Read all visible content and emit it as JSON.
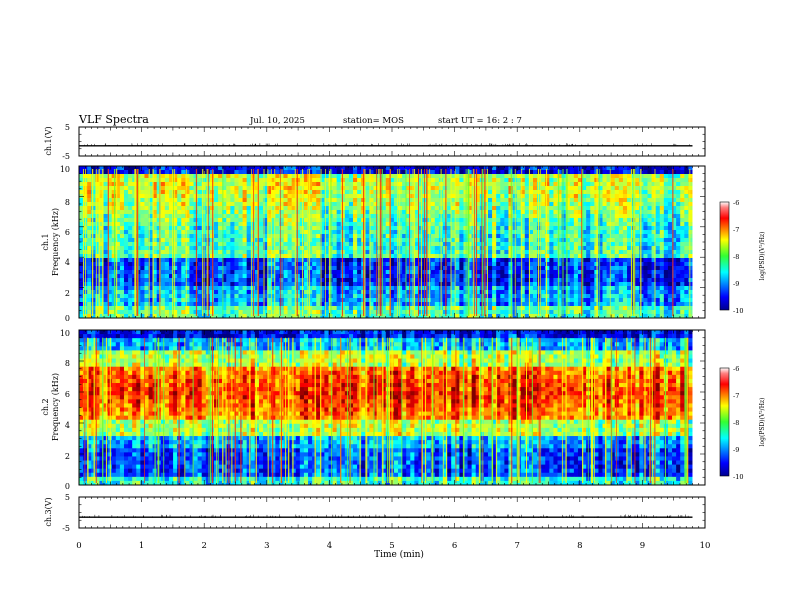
{
  "header": {
    "title": "VLF Spectra",
    "date": "Jul. 10, 2025",
    "station": "station= MOS",
    "start_ut": "start UT =   16: 2  : 7"
  },
  "chart_data": [
    {
      "name": "ch1-voltage",
      "type": "line",
      "ylabel": "ch.1(V)",
      "ylim": [
        -5,
        5
      ],
      "y_ticks": [
        "5",
        "-5"
      ],
      "xlim": [
        0,
        10
      ],
      "baseline": -1.5
    },
    {
      "name": "ch1-spectrogram",
      "type": "heatmap",
      "ylabel": "ch.1\nFrequency (kHz)",
      "ylim": [
        0,
        10
      ],
      "y_ticks": [
        "0",
        "2",
        "4",
        "6",
        "8",
        "10"
      ],
      "xlim": [
        0,
        10
      ],
      "data_end_min": 9.8,
      "colorbar": {
        "label": "log(PSD)(V²/Hz)",
        "range": [
          -10,
          -6
        ],
        "ticks": [
          "-6",
          "-7",
          "-8",
          "-9",
          "-10"
        ]
      }
    },
    {
      "name": "ch2-spectrogram",
      "type": "heatmap",
      "ylabel": "ch.2\nFrequency (kHz)",
      "ylim": [
        0,
        10
      ],
      "y_ticks": [
        "0",
        "2",
        "4",
        "6",
        "8",
        "10"
      ],
      "xlim": [
        0,
        10
      ],
      "data_end_min": 9.8,
      "colorbar": {
        "label": "log(PSD)(V²/Hz)",
        "range": [
          -10,
          -6
        ],
        "ticks": [
          "-6",
          "-7",
          "-8",
          "-9",
          "-10"
        ]
      }
    },
    {
      "name": "ch3-voltage",
      "type": "line",
      "ylabel": "ch.3(V)",
      "ylim": [
        -5,
        5
      ],
      "y_ticks": [
        "5",
        "-5"
      ],
      "xlim": [
        0,
        10
      ],
      "baseline": -1.5,
      "xlabel": "Time (min)",
      "x_ticks": [
        "0",
        "1",
        "2",
        "3",
        "4",
        "5",
        "6",
        "7",
        "8",
        "9",
        "10"
      ]
    }
  ],
  "labels": {
    "ch1_volt": "ch.1(V)",
    "ch1_freq_top": "ch.1",
    "ch1_freq_bottom": "Frequency (kHz)",
    "ch2_freq_top": "ch.2",
    "ch2_freq_bottom": "Frequency (kHz)",
    "ch3_volt": "ch.3(V)",
    "xlabel": "Time (min)",
    "colorbar_label": "log(PSD)(V²/Hz)"
  },
  "colors": {
    "axis": "#000000",
    "background": "#ffffff"
  }
}
